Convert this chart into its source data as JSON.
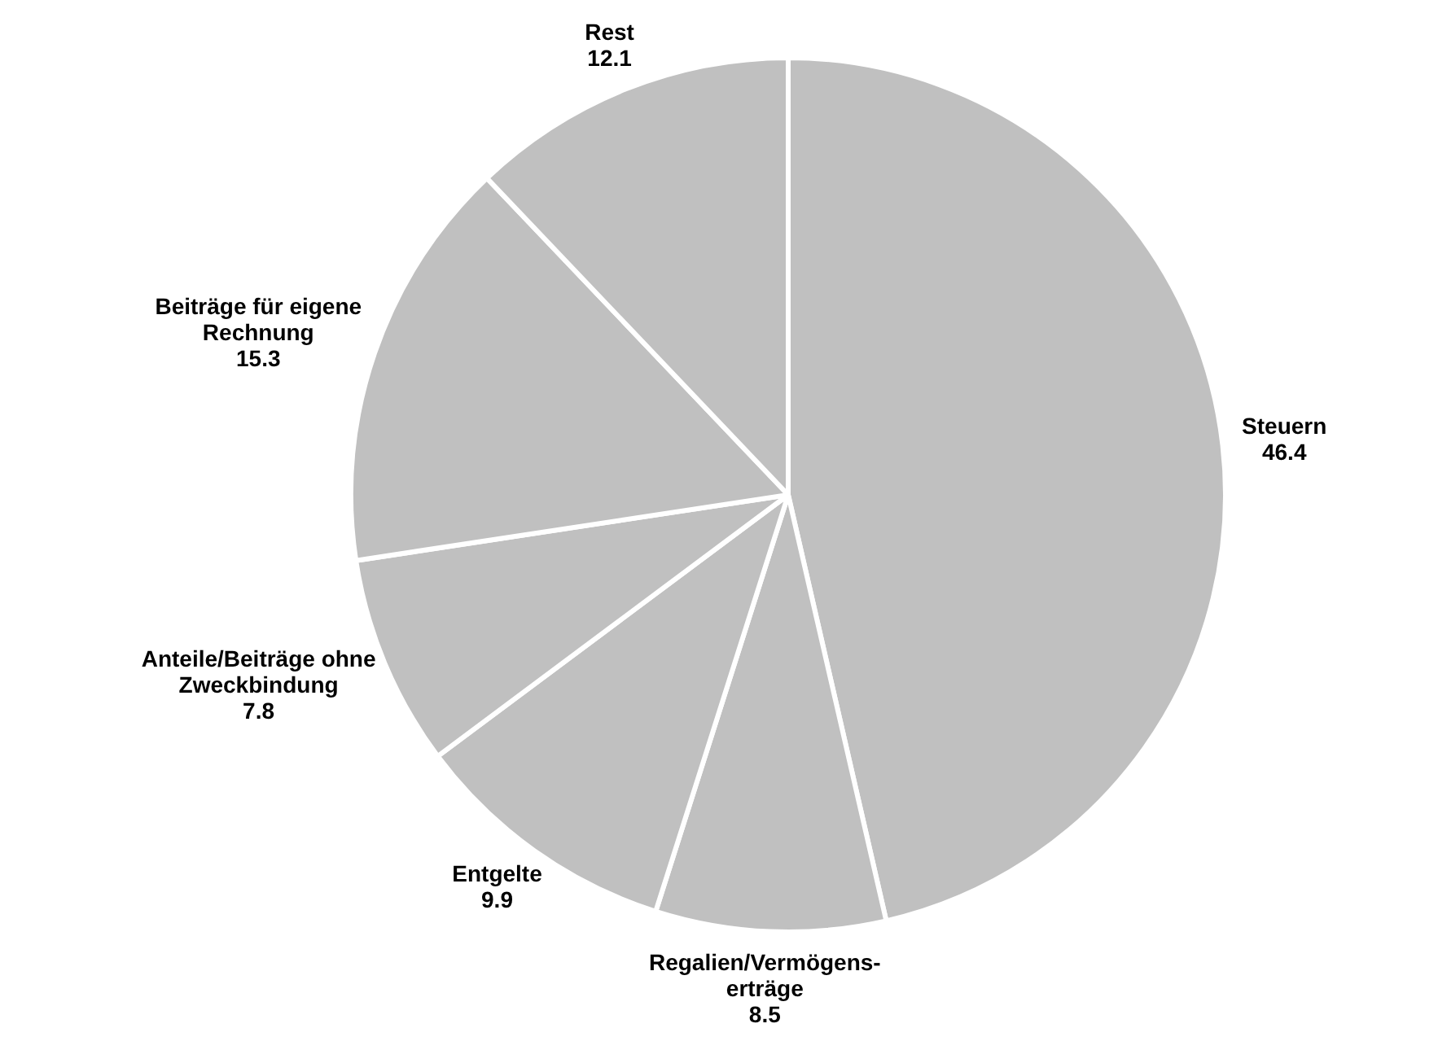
{
  "chart_data": {
    "type": "pie",
    "categories": [
      "Steuern",
      "Regalien/Vermögens-erträge",
      "Entgelte",
      "Anteile/Beiträge ohne Zweckbindung",
      "Beiträge für eigene Rechnung",
      "Rest"
    ],
    "values": [
      46.4,
      8.5,
      9.9,
      7.8,
      15.3,
      12.1
    ],
    "colors": [
      "#c0c0c0",
      "#c0c0c0",
      "#c0c0c0",
      "#c0c0c0",
      "#c0c0c0",
      "#c0c0c0"
    ],
    "data_labels": true,
    "legend": false
  }
}
